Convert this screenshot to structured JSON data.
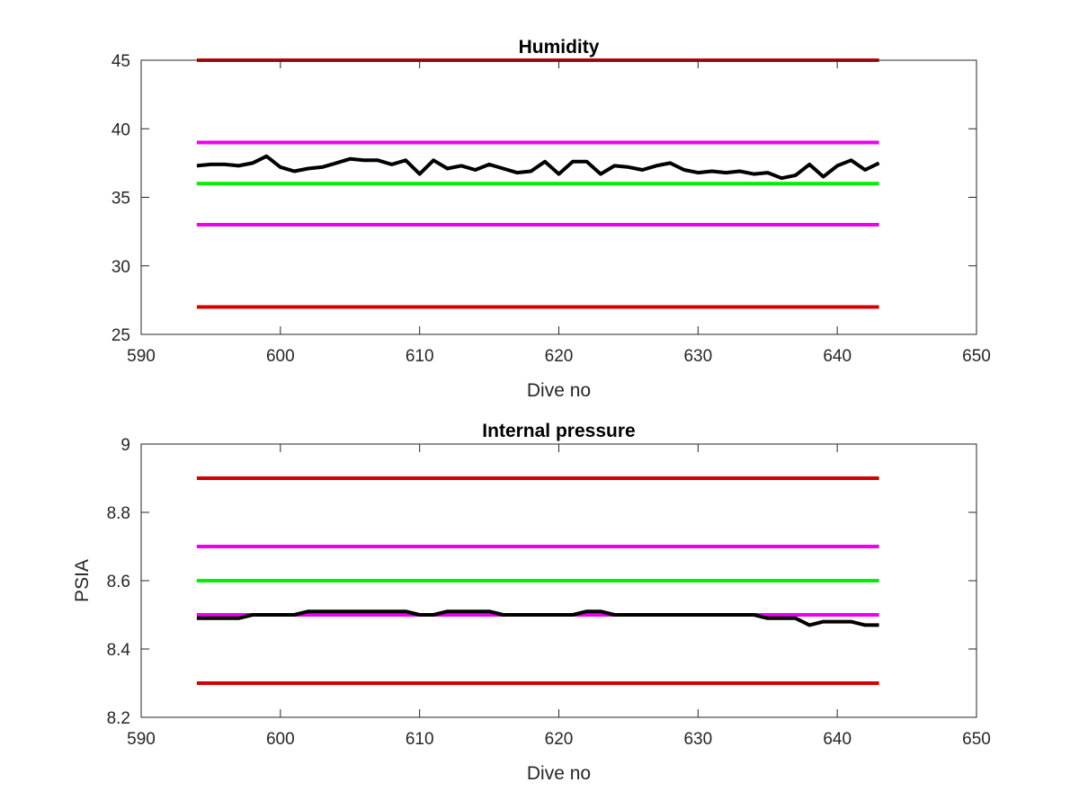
{
  "chart_data": [
    {
      "type": "line",
      "title": "Humidity",
      "xlabel": "Dive no",
      "ylabel": "",
      "xlim": [
        590,
        650
      ],
      "ylim": [
        25,
        45
      ],
      "xticks": [
        590,
        600,
        610,
        620,
        630,
        640,
        650
      ],
      "yticks": [
        25,
        30,
        35,
        40,
        45
      ],
      "xtick_labels": [
        "590",
        "600",
        "610",
        "620",
        "630",
        "640",
        "650"
      ],
      "ytick_labels": [
        "25",
        "30",
        "35",
        "40",
        "45"
      ],
      "grid": false,
      "thresholds": [
        {
          "value": 45,
          "x": [
            594,
            643
          ],
          "color": "#d40000"
        },
        {
          "value": 39,
          "x": [
            594,
            643
          ],
          "color": "#ee00ee"
        },
        {
          "value": 36,
          "x": [
            594,
            643
          ],
          "color": "#00ee00"
        },
        {
          "value": 33,
          "x": [
            594,
            643
          ],
          "color": "#ee00ee"
        },
        {
          "value": 27,
          "x": [
            594,
            643
          ],
          "color": "#d40000"
        }
      ],
      "series": [
        {
          "color": "#000000",
          "x": [
            594,
            595,
            596,
            597,
            598,
            599,
            600,
            601,
            602,
            603,
            604,
            605,
            606,
            607,
            608,
            609,
            610,
            611,
            612,
            613,
            614,
            615,
            616,
            617,
            618,
            619,
            620,
            621,
            622,
            623,
            624,
            625,
            626,
            627,
            628,
            629,
            630,
            631,
            632,
            633,
            634,
            635,
            636,
            637,
            638,
            639,
            640,
            641,
            642,
            643
          ],
          "y": [
            37.3,
            37.4,
            37.4,
            37.3,
            37.5,
            38.0,
            37.2,
            36.9,
            37.1,
            37.2,
            37.5,
            37.8,
            37.7,
            37.7,
            37.4,
            37.7,
            36.7,
            37.7,
            37.1,
            37.3,
            37.0,
            37.4,
            37.1,
            36.8,
            36.9,
            37.6,
            36.7,
            37.6,
            37.6,
            36.7,
            37.3,
            37.2,
            37.0,
            37.3,
            37.5,
            37.0,
            36.8,
            36.9,
            36.8,
            36.9,
            36.7,
            36.8,
            36.4,
            36.6,
            37.4,
            36.5,
            37.3,
            37.7,
            37.0,
            37.5
          ]
        }
      ]
    },
    {
      "type": "line",
      "title": "Internal pressure",
      "xlabel": "Dive no",
      "ylabel": "PSIA",
      "xlim": [
        590,
        650
      ],
      "ylim": [
        8.2,
        9
      ],
      "xticks": [
        590,
        600,
        610,
        620,
        630,
        640,
        650
      ],
      "yticks": [
        8.2,
        8.4,
        8.6,
        8.8,
        9
      ],
      "xtick_labels": [
        "590",
        "600",
        "610",
        "620",
        "630",
        "640",
        "650"
      ],
      "ytick_labels": [
        "8.2",
        "8.4",
        "8.6",
        "8.8",
        "9"
      ],
      "grid": false,
      "thresholds": [
        {
          "value": 8.9,
          "x": [
            594,
            643
          ],
          "color": "#d40000"
        },
        {
          "value": 8.7,
          "x": [
            594,
            643
          ],
          "color": "#ee00ee"
        },
        {
          "value": 8.6,
          "x": [
            594,
            643
          ],
          "color": "#00ee00"
        },
        {
          "value": 8.5,
          "x": [
            594,
            643
          ],
          "color": "#ee00ee"
        },
        {
          "value": 8.3,
          "x": [
            594,
            643
          ],
          "color": "#d40000"
        }
      ],
      "series": [
        {
          "color": "#000000",
          "x": [
            594,
            595,
            596,
            597,
            598,
            599,
            600,
            601,
            602,
            603,
            604,
            605,
            606,
            607,
            608,
            609,
            610,
            611,
            612,
            613,
            614,
            615,
            616,
            617,
            618,
            619,
            620,
            621,
            622,
            623,
            624,
            625,
            626,
            627,
            628,
            629,
            630,
            631,
            632,
            633,
            634,
            635,
            636,
            637,
            638,
            639,
            640,
            641,
            642,
            643
          ],
          "y": [
            8.49,
            8.49,
            8.49,
            8.49,
            8.5,
            8.5,
            8.5,
            8.5,
            8.51,
            8.51,
            8.51,
            8.51,
            8.51,
            8.51,
            8.51,
            8.51,
            8.5,
            8.5,
            8.51,
            8.51,
            8.51,
            8.51,
            8.5,
            8.5,
            8.5,
            8.5,
            8.5,
            8.5,
            8.51,
            8.51,
            8.5,
            8.5,
            8.5,
            8.5,
            8.5,
            8.5,
            8.5,
            8.5,
            8.5,
            8.5,
            8.5,
            8.49,
            8.49,
            8.49,
            8.47,
            8.48,
            8.48,
            8.48,
            8.47,
            8.47
          ]
        }
      ]
    }
  ]
}
